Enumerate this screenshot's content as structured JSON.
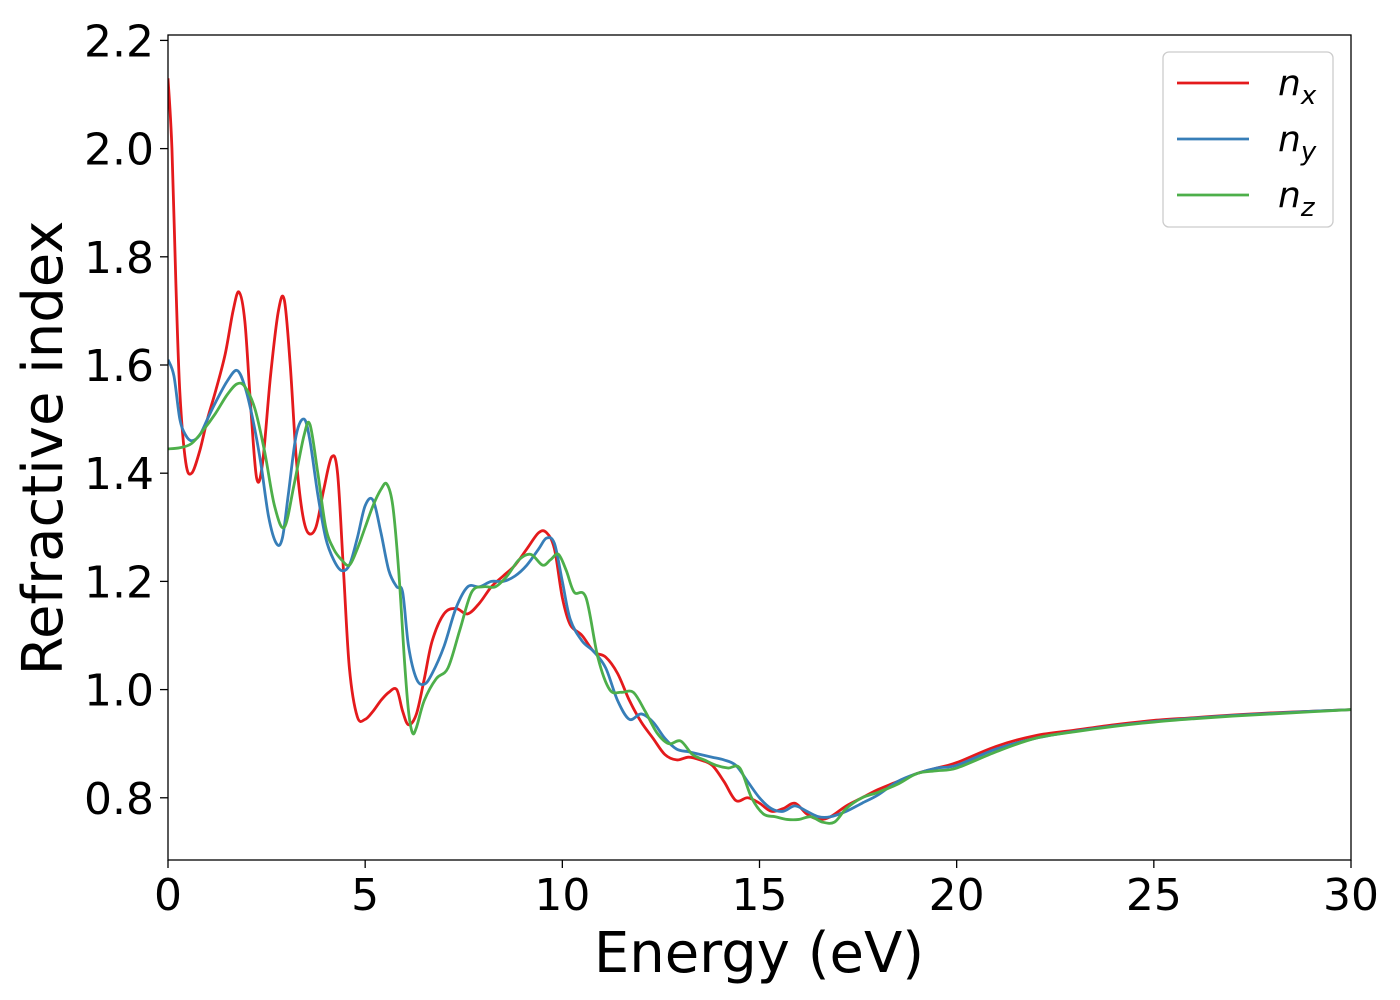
{
  "chart_data": {
    "type": "line",
    "xlabel": "Energy (eV)",
    "ylabel": "Refractive index",
    "xlim": [
      0,
      30
    ],
    "ylim": [
      0.685,
      2.21
    ],
    "xticks": [
      0,
      5,
      10,
      15,
      20,
      25,
      30
    ],
    "yticks": [
      0.8,
      1.0,
      1.2,
      1.4,
      1.6,
      1.8,
      2.0,
      2.2
    ],
    "legend_position": "top-right",
    "grid": false,
    "series": [
      {
        "name": "n_x",
        "label_base": "n",
        "label_sub": "x",
        "color": "#e41a1c",
        "x": [
          0.0,
          0.1,
          0.2,
          0.3,
          0.45,
          0.6,
          0.8,
          1.0,
          1.2,
          1.45,
          1.65,
          1.8,
          1.95,
          2.1,
          2.25,
          2.4,
          2.6,
          2.8,
          2.95,
          3.1,
          3.25,
          3.4,
          3.55,
          3.75,
          3.95,
          4.15,
          4.3,
          4.45,
          4.6,
          4.8,
          5.0,
          5.2,
          5.4,
          5.6,
          5.8,
          5.95,
          6.1,
          6.3,
          6.5,
          6.7,
          7.0,
          7.3,
          7.6,
          7.9,
          8.2,
          8.5,
          8.8,
          9.1,
          9.4,
          9.6,
          9.8,
          10.0,
          10.2,
          10.5,
          10.8,
          11.1,
          11.4,
          11.7,
          12.0,
          12.3,
          12.6,
          12.9,
          13.2,
          13.5,
          13.8,
          14.1,
          14.4,
          14.7,
          15.0,
          15.3,
          15.6,
          15.9,
          16.2,
          16.5,
          16.8,
          17.2,
          17.6,
          18.0,
          18.5,
          19.0,
          19.5,
          20.0,
          21.0,
          22.0,
          23.0,
          24.0,
          25.0,
          26.0,
          27.0,
          28.0,
          29.0,
          30.0
        ],
        "values": [
          2.13,
          2.0,
          1.75,
          1.55,
          1.42,
          1.4,
          1.44,
          1.5,
          1.55,
          1.62,
          1.7,
          1.735,
          1.68,
          1.52,
          1.39,
          1.42,
          1.58,
          1.7,
          1.72,
          1.6,
          1.43,
          1.33,
          1.29,
          1.3,
          1.37,
          1.43,
          1.4,
          1.22,
          1.04,
          0.95,
          0.945,
          0.96,
          0.98,
          0.995,
          1.0,
          0.96,
          0.935,
          0.955,
          1.02,
          1.09,
          1.14,
          1.15,
          1.14,
          1.16,
          1.19,
          1.21,
          1.23,
          1.26,
          1.29,
          1.29,
          1.26,
          1.17,
          1.12,
          1.1,
          1.07,
          1.06,
          1.03,
          0.98,
          0.94,
          0.91,
          0.88,
          0.87,
          0.875,
          0.87,
          0.86,
          0.83,
          0.795,
          0.8,
          0.79,
          0.775,
          0.78,
          0.79,
          0.77,
          0.76,
          0.765,
          0.785,
          0.8,
          0.815,
          0.83,
          0.845,
          0.855,
          0.865,
          0.895,
          0.915,
          0.925,
          0.935,
          0.943,
          0.948,
          0.953,
          0.957,
          0.96,
          0.963
        ]
      },
      {
        "name": "n_y",
        "label_base": "n",
        "label_sub": "y",
        "color": "#377eb8",
        "x": [
          0.0,
          0.15,
          0.3,
          0.45,
          0.6,
          0.8,
          1.0,
          1.2,
          1.5,
          1.75,
          1.95,
          2.15,
          2.35,
          2.55,
          2.75,
          2.9,
          3.05,
          3.25,
          3.45,
          3.6,
          3.8,
          4.0,
          4.2,
          4.4,
          4.6,
          4.8,
          5.0,
          5.2,
          5.4,
          5.6,
          5.8,
          5.95,
          6.1,
          6.3,
          6.5,
          6.7,
          7.0,
          7.3,
          7.6,
          7.9,
          8.2,
          8.5,
          8.8,
          9.1,
          9.4,
          9.6,
          9.8,
          10.0,
          10.2,
          10.5,
          10.8,
          11.1,
          11.4,
          11.7,
          12.0,
          12.3,
          12.6,
          12.9,
          13.2,
          13.5,
          13.8,
          14.1,
          14.4,
          14.7,
          15.0,
          15.3,
          15.6,
          15.9,
          16.2,
          16.5,
          16.8,
          17.2,
          17.6,
          18.0,
          18.5,
          19.0,
          19.5,
          20.0,
          21.0,
          22.0,
          23.0,
          24.0,
          25.0,
          26.0,
          27.0,
          28.0,
          29.0,
          30.0
        ],
        "values": [
          1.61,
          1.58,
          1.5,
          1.47,
          1.46,
          1.47,
          1.5,
          1.53,
          1.57,
          1.59,
          1.56,
          1.5,
          1.42,
          1.32,
          1.27,
          1.28,
          1.36,
          1.47,
          1.5,
          1.46,
          1.36,
          1.28,
          1.24,
          1.22,
          1.23,
          1.28,
          1.34,
          1.35,
          1.29,
          1.22,
          1.19,
          1.18,
          1.08,
          1.02,
          1.01,
          1.03,
          1.08,
          1.15,
          1.19,
          1.19,
          1.2,
          1.2,
          1.21,
          1.23,
          1.26,
          1.28,
          1.27,
          1.2,
          1.13,
          1.09,
          1.07,
          1.04,
          0.98,
          0.945,
          0.955,
          0.94,
          0.91,
          0.89,
          0.885,
          0.88,
          0.875,
          0.87,
          0.86,
          0.83,
          0.8,
          0.78,
          0.775,
          0.785,
          0.775,
          0.765,
          0.765,
          0.775,
          0.79,
          0.805,
          0.83,
          0.845,
          0.855,
          0.86,
          0.89,
          0.91,
          0.923,
          0.933,
          0.941,
          0.947,
          0.952,
          0.956,
          0.96,
          0.963
        ]
      },
      {
        "name": "n_z",
        "label_base": "n",
        "label_sub": "z",
        "color": "#4daf4a",
        "x": [
          0.0,
          0.3,
          0.6,
          0.9,
          1.2,
          1.5,
          1.75,
          1.95,
          2.2,
          2.45,
          2.7,
          2.95,
          3.2,
          3.45,
          3.6,
          3.8,
          4.0,
          4.2,
          4.4,
          4.6,
          4.8,
          5.0,
          5.2,
          5.4,
          5.55,
          5.7,
          5.85,
          6.0,
          6.1,
          6.2,
          6.3,
          6.5,
          6.8,
          7.1,
          7.4,
          7.7,
          8.0,
          8.3,
          8.6,
          8.9,
          9.2,
          9.5,
          9.7,
          9.9,
          10.1,
          10.3,
          10.6,
          10.9,
          11.2,
          11.5,
          11.8,
          12.1,
          12.4,
          12.7,
          13.0,
          13.3,
          13.6,
          13.9,
          14.2,
          14.5,
          14.8,
          15.1,
          15.4,
          15.7,
          16.0,
          16.3,
          16.6,
          16.9,
          17.2,
          17.6,
          18.0,
          18.5,
          19.0,
          19.5,
          20.0,
          21.0,
          22.0,
          23.0,
          24.0,
          25.0,
          26.0,
          27.0,
          28.0,
          29.0,
          30.0
        ],
        "values": [
          1.445,
          1.447,
          1.455,
          1.48,
          1.51,
          1.545,
          1.565,
          1.56,
          1.52,
          1.44,
          1.34,
          1.3,
          1.38,
          1.47,
          1.49,
          1.4,
          1.3,
          1.26,
          1.24,
          1.23,
          1.26,
          1.3,
          1.34,
          1.37,
          1.38,
          1.34,
          1.22,
          1.05,
          0.96,
          0.92,
          0.93,
          0.98,
          1.02,
          1.04,
          1.11,
          1.18,
          1.19,
          1.19,
          1.21,
          1.24,
          1.25,
          1.23,
          1.24,
          1.25,
          1.22,
          1.18,
          1.17,
          1.06,
          1.0,
          0.995,
          0.995,
          0.96,
          0.92,
          0.9,
          0.905,
          0.88,
          0.87,
          0.86,
          0.855,
          0.855,
          0.8,
          0.77,
          0.765,
          0.76,
          0.76,
          0.765,
          0.755,
          0.755,
          0.78,
          0.8,
          0.81,
          0.825,
          0.845,
          0.85,
          0.855,
          0.885,
          0.91,
          0.922,
          0.932,
          0.94,
          0.946,
          0.951,
          0.955,
          0.959,
          0.963
        ]
      }
    ]
  }
}
